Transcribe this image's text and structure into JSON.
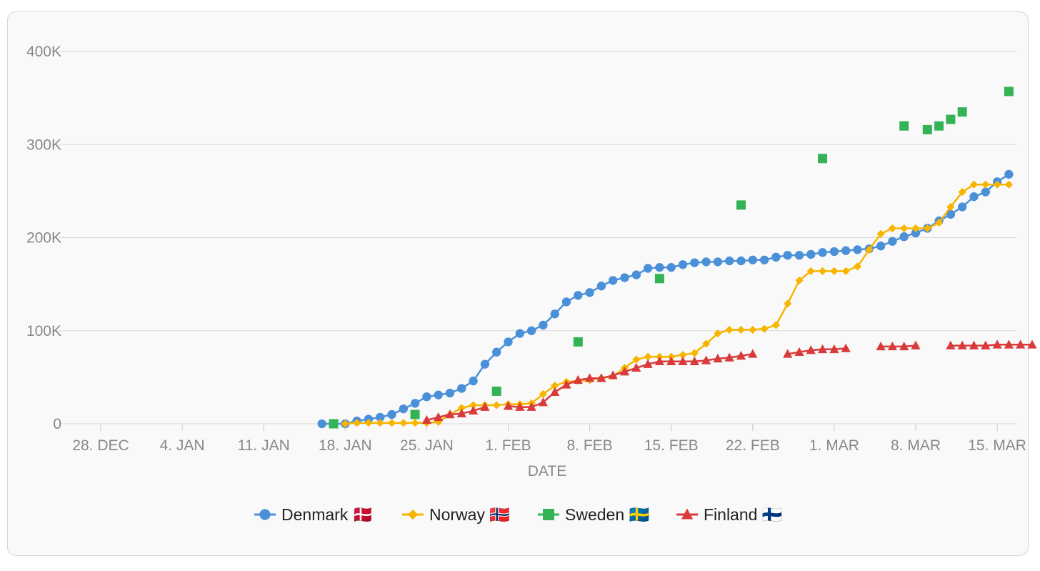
{
  "chart_data": {
    "type": "line",
    "title": "",
    "xlabel": "DATE",
    "ylabel": "",
    "x_ticks": [
      {
        "date": "2020-12-28",
        "label": "28. DEC"
      },
      {
        "date": "2021-01-04",
        "label": "4. JAN"
      },
      {
        "date": "2021-01-11",
        "label": "11. JAN"
      },
      {
        "date": "2021-01-18",
        "label": "18. JAN"
      },
      {
        "date": "2021-01-25",
        "label": "25. JAN"
      },
      {
        "date": "2021-02-01",
        "label": "1. FEB"
      },
      {
        "date": "2021-02-08",
        "label": "8. FEB"
      },
      {
        "date": "2021-02-15",
        "label": "15. FEB"
      },
      {
        "date": "2021-02-22",
        "label": "22. FEB"
      },
      {
        "date": "2021-03-01",
        "label": "1. MAR"
      },
      {
        "date": "2021-03-08",
        "label": "8. MAR"
      },
      {
        "date": "2021-03-15",
        "label": "15. MAR"
      }
    ],
    "xlim": [
      "2020-12-26",
      "2021-03-17"
    ],
    "y_ticks": [
      {
        "value": 0,
        "label": "0"
      },
      {
        "value": 100000,
        "label": "100K"
      },
      {
        "value": 200000,
        "label": "200K"
      },
      {
        "value": 300000,
        "label": "300K"
      },
      {
        "value": 400000,
        "label": "400K"
      }
    ],
    "ylim": [
      0,
      400000
    ],
    "grid": true,
    "legend_position": "bottom",
    "series": [
      {
        "name": "Denmark 🇩🇰",
        "color": "#4a90d9",
        "marker": "circle",
        "connected": true,
        "points": [
          [
            "2021-01-16",
            0
          ],
          [
            "2021-01-17",
            0
          ],
          [
            "2021-01-18",
            0
          ],
          [
            "2021-01-19",
            3000
          ],
          [
            "2021-01-20",
            5000
          ],
          [
            "2021-01-21",
            7000
          ],
          [
            "2021-01-22",
            10000
          ],
          [
            "2021-01-23",
            16000
          ],
          [
            "2021-01-24",
            22000
          ],
          [
            "2021-01-25",
            29000
          ],
          [
            "2021-01-26",
            31000
          ],
          [
            "2021-01-27",
            33000
          ],
          [
            "2021-01-28",
            38000
          ],
          [
            "2021-01-29",
            46000
          ],
          [
            "2021-01-30",
            64000
          ],
          [
            "2021-01-31",
            77000
          ],
          [
            "2021-02-01",
            88000
          ],
          [
            "2021-02-02",
            97000
          ],
          [
            "2021-02-03",
            100000
          ],
          [
            "2021-02-04",
            106000
          ],
          [
            "2021-02-05",
            118000
          ],
          [
            "2021-02-06",
            131000
          ],
          [
            "2021-02-07",
            138000
          ],
          [
            "2021-02-08",
            141000
          ],
          [
            "2021-02-09",
            148000
          ],
          [
            "2021-02-10",
            154000
          ],
          [
            "2021-02-11",
            157000
          ],
          [
            "2021-02-12",
            160000
          ],
          [
            "2021-02-13",
            167000
          ],
          [
            "2021-02-14",
            168000
          ],
          [
            "2021-02-15",
            168000
          ],
          [
            "2021-02-16",
            171000
          ],
          [
            "2021-02-17",
            173000
          ],
          [
            "2021-02-18",
            174000
          ],
          [
            "2021-02-19",
            174000
          ],
          [
            "2021-02-20",
            175000
          ],
          [
            "2021-02-21",
            175000
          ],
          [
            "2021-02-22",
            176000
          ],
          [
            "2021-02-23",
            176000
          ],
          [
            "2021-02-24",
            179000
          ],
          [
            "2021-02-25",
            181000
          ],
          [
            "2021-02-26",
            181000
          ],
          [
            "2021-02-27",
            182000
          ],
          [
            "2021-02-28",
            184000
          ],
          [
            "2021-03-01",
            185000
          ],
          [
            "2021-03-02",
            186000
          ],
          [
            "2021-03-03",
            187000
          ],
          [
            "2021-03-04",
            188000
          ],
          [
            "2021-03-05",
            191000
          ],
          [
            "2021-03-06",
            196000
          ],
          [
            "2021-03-07",
            201000
          ],
          [
            "2021-03-08",
            205000
          ],
          [
            "2021-03-09",
            210000
          ],
          [
            "2021-03-10",
            218000
          ],
          [
            "2021-03-11",
            225000
          ],
          [
            "2021-03-12",
            233000
          ],
          [
            "2021-03-13",
            244000
          ],
          [
            "2021-03-14",
            249000
          ],
          [
            "2021-03-15",
            260000
          ],
          [
            "2021-03-16",
            268000
          ]
        ]
      },
      {
        "name": "Norway 🇳🇴",
        "color": "#f7b500",
        "marker": "diamond",
        "connected": true,
        "points": [
          [
            "2021-01-18",
            0
          ],
          [
            "2021-01-19",
            1000
          ],
          [
            "2021-01-20",
            1000
          ],
          [
            "2021-01-21",
            1000
          ],
          [
            "2021-01-22",
            1000
          ],
          [
            "2021-01-23",
            1000
          ],
          [
            "2021-01-24",
            1000
          ],
          [
            "2021-01-25",
            1000
          ],
          [
            "2021-01-26",
            2000
          ],
          [
            "2021-01-27",
            10000
          ],
          [
            "2021-01-28",
            17000
          ],
          [
            "2021-01-29",
            20000
          ],
          [
            "2021-01-30",
            20000
          ],
          [
            "2021-01-31",
            20000
          ],
          [
            "2021-02-01",
            21000
          ],
          [
            "2021-02-02",
            21000
          ],
          [
            "2021-02-03",
            22000
          ],
          [
            "2021-02-04",
            32000
          ],
          [
            "2021-02-05",
            41000
          ],
          [
            "2021-02-06",
            45000
          ],
          [
            "2021-02-07",
            46000
          ],
          [
            "2021-02-08",
            47000
          ],
          [
            "2021-02-09",
            49000
          ],
          [
            "2021-02-10",
            51000
          ],
          [
            "2021-02-11",
            60000
          ],
          [
            "2021-02-12",
            69000
          ],
          [
            "2021-02-13",
            72000
          ],
          [
            "2021-02-14",
            72000
          ],
          [
            "2021-02-15",
            72000
          ],
          [
            "2021-02-16",
            74000
          ],
          [
            "2021-02-17",
            76000
          ],
          [
            "2021-02-18",
            86000
          ],
          [
            "2021-02-19",
            97000
          ],
          [
            "2021-02-20",
            101000
          ],
          [
            "2021-02-21",
            101000
          ],
          [
            "2021-02-22",
            101000
          ],
          [
            "2021-02-23",
            102000
          ],
          [
            "2021-02-24",
            106000
          ],
          [
            "2021-02-25",
            129000
          ],
          [
            "2021-02-26",
            154000
          ],
          [
            "2021-02-27",
            164000
          ],
          [
            "2021-02-28",
            164000
          ],
          [
            "2021-03-01",
            164000
          ],
          [
            "2021-03-02",
            164000
          ],
          [
            "2021-03-03",
            169000
          ],
          [
            "2021-03-04",
            187000
          ],
          [
            "2021-03-05",
            204000
          ],
          [
            "2021-03-06",
            210000
          ],
          [
            "2021-03-07",
            210000
          ],
          [
            "2021-03-08",
            210000
          ],
          [
            "2021-03-09",
            210000
          ],
          [
            "2021-03-10",
            216000
          ],
          [
            "2021-03-11",
            233000
          ],
          [
            "2021-03-12",
            249000
          ],
          [
            "2021-03-13",
            257000
          ],
          [
            "2021-03-14",
            257000
          ],
          [
            "2021-03-15",
            257000
          ],
          [
            "2021-03-16",
            257000
          ]
        ]
      },
      {
        "name": "Sweden 🇸🇪",
        "color": "#34b356",
        "marker": "square",
        "connected": false,
        "points": [
          [
            "2021-01-17",
            0
          ],
          [
            "2021-01-24",
            10000
          ],
          [
            "2021-01-31",
            35000
          ],
          [
            "2021-02-07",
            88000
          ],
          [
            "2021-02-14",
            156000
          ],
          [
            "2021-02-21",
            235000
          ],
          [
            "2021-02-28",
            285000
          ],
          [
            "2021-03-07",
            320000
          ],
          [
            "2021-03-09",
            316000
          ],
          [
            "2021-03-10",
            320000
          ],
          [
            "2021-03-11",
            327000
          ],
          [
            "2021-03-12",
            335000
          ],
          [
            "2021-03-16",
            357000
          ]
        ]
      },
      {
        "name": "Finland 🇫🇮",
        "color": "#d93a3a",
        "marker": "triangle",
        "connected": true,
        "points": [
          [
            "2021-01-25",
            4000
          ],
          [
            "2021-01-26",
            7000
          ],
          [
            "2021-01-27",
            10000
          ],
          [
            "2021-01-28",
            11000
          ],
          [
            "2021-01-29",
            14000
          ],
          [
            "2021-01-30",
            18000
          ],
          [
            "2021-01-31",
            null
          ],
          [
            "2021-02-01",
            19000
          ],
          [
            "2021-02-02",
            18000
          ],
          [
            "2021-02-03",
            18000
          ],
          [
            "2021-02-04",
            23000
          ],
          [
            "2021-02-05",
            34000
          ],
          [
            "2021-02-06",
            42000
          ],
          [
            "2021-02-07",
            47000
          ],
          [
            "2021-02-08",
            49000
          ],
          [
            "2021-02-09",
            49000
          ],
          [
            "2021-02-10",
            52000
          ],
          [
            "2021-02-11",
            56000
          ],
          [
            "2021-02-12",
            60000
          ],
          [
            "2021-02-13",
            64000
          ],
          [
            "2021-02-14",
            67000
          ],
          [
            "2021-02-15",
            67000
          ],
          [
            "2021-02-16",
            67000
          ],
          [
            "2021-02-17",
            67000
          ],
          [
            "2021-02-18",
            68000
          ],
          [
            "2021-02-19",
            70000
          ],
          [
            "2021-02-20",
            71000
          ],
          [
            "2021-02-21",
            73000
          ],
          [
            "2021-02-22",
            75000
          ],
          [
            "2021-02-23",
            null
          ],
          [
            "2021-02-25",
            75000
          ],
          [
            "2021-02-26",
            77000
          ],
          [
            "2021-02-27",
            79000
          ],
          [
            "2021-02-28",
            80000
          ],
          [
            "2021-03-01",
            80000
          ],
          [
            "2021-03-02",
            81000
          ],
          [
            "2021-03-03",
            null
          ],
          [
            "2021-03-05",
            83000
          ],
          [
            "2021-03-06",
            83000
          ],
          [
            "2021-03-07",
            83000
          ],
          [
            "2021-03-08",
            84000
          ],
          [
            "2021-03-09",
            null
          ],
          [
            "2021-03-11",
            84000
          ],
          [
            "2021-03-12",
            84000
          ],
          [
            "2021-03-13",
            84000
          ],
          [
            "2021-03-14",
            84000
          ],
          [
            "2021-03-15",
            85000
          ],
          [
            "2021-03-16",
            85000
          ],
          [
            "2021-03-17",
            85000
          ],
          [
            "2021-03-18",
            85000
          ]
        ]
      }
    ]
  }
}
